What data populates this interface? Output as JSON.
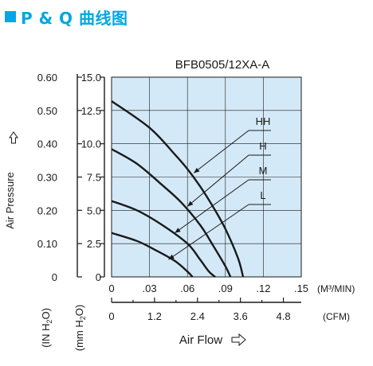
{
  "heading": {
    "text": "P & Q 曲线图"
  },
  "chart_data": {
    "type": "line",
    "title": "BFB0505/12XA-A",
    "y_left_outer": {
      "ticks": [
        "0.60",
        "0.50",
        "0.40",
        "0.30",
        "0.20",
        "0.10",
        "0"
      ],
      "range": [
        0,
        0.6
      ],
      "unit": "(IN H2O)"
    },
    "y_left_inner": {
      "ticks": [
        "15.0",
        "12.5",
        "10.0",
        "7.5",
        "5.0",
        "2.5",
        "0"
      ],
      "range": [
        0,
        15
      ],
      "unit": "(mm H2O)"
    },
    "ylabel": "Air Pressure",
    "x_top": {
      "ticks": [
        "0",
        ".03",
        ".06",
        ".09",
        ".12",
        ".15"
      ],
      "range": [
        0,
        0.15
      ],
      "unit": "(M³/MIN)"
    },
    "x_bottom": {
      "ticks": [
        "0",
        "1.2",
        "2.4",
        "3.6",
        "4.8"
      ],
      "range": [
        0,
        5.3
      ],
      "unit": "(CFM)"
    },
    "xlabel": "Air Flow",
    "grid": true,
    "series": [
      {
        "name": "HH",
        "x": [
          0,
          0.03,
          0.05,
          0.06,
          0.07,
          0.08,
          0.09,
          0.1,
          0.104
        ],
        "y": [
          13.2,
          11.2,
          9.2,
          8.1,
          6.8,
          5.3,
          3.6,
          1.4,
          0
        ]
      },
      {
        "name": "H",
        "x": [
          0,
          0.02,
          0.04,
          0.055,
          0.07,
          0.08,
          0.09,
          0.094
        ],
        "y": [
          9.6,
          8.5,
          6.9,
          5.6,
          3.9,
          2.4,
          0.8,
          0
        ]
      },
      {
        "name": "M",
        "x": [
          0,
          0.02,
          0.04,
          0.06,
          0.07,
          0.077,
          0.082
        ],
        "y": [
          5.7,
          5.0,
          3.9,
          2.5,
          1.3,
          0.4,
          0
        ]
      },
      {
        "name": "L",
        "x": [
          0,
          0.02,
          0.035,
          0.05,
          0.06,
          0.064
        ],
        "y": [
          3.3,
          2.7,
          2.0,
          1.2,
          0.4,
          0
        ]
      }
    ],
    "labels": [
      {
        "name": "HH",
        "anchor": [
          0.065,
          7.8
        ]
      },
      {
        "name": "H",
        "anchor": [
          0.06,
          5.3
        ]
      },
      {
        "name": "M",
        "anchor": [
          0.05,
          3.3
        ]
      },
      {
        "name": "L",
        "anchor": [
          0.045,
          1.3
        ]
      }
    ]
  }
}
